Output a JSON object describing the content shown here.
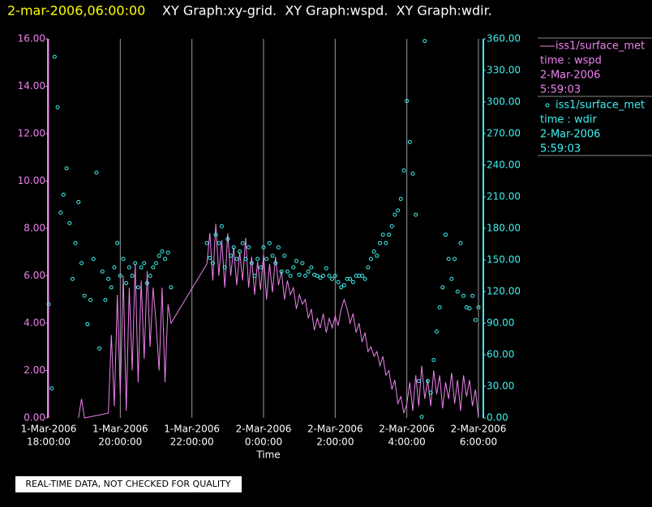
{
  "header": {
    "timestamp": "2-mar-2006,06:00:00",
    "graphs": "XY Graph:xy-grid.  XY Graph:wspd.  XY Graph:wdir."
  },
  "footer": "REAL-TIME DATA, NOT CHECKED FOR QUALITY",
  "chart_data": {
    "type": "xy",
    "xlabel": "Time",
    "grid": true,
    "xlim": [
      "2006-03-01T18:00",
      "2006-03-02T06:00"
    ],
    "xticks": [
      {
        "value": "2006-03-01T18:00",
        "label": [
          "1-Mar-2006",
          "18:00:00"
        ]
      },
      {
        "value": "2006-03-01T20:00",
        "label": [
          "1-Mar-2006",
          "20:00:00"
        ]
      },
      {
        "value": "2006-03-01T22:00",
        "label": [
          "1-Mar-2006",
          "22:00:00"
        ]
      },
      {
        "value": "2006-03-02T00:00",
        "label": [
          "2-Mar-2006",
          "0:00:00"
        ]
      },
      {
        "value": "2006-03-02T02:00",
        "label": [
          "2-Mar-2006",
          "2:00:00"
        ]
      },
      {
        "value": "2006-03-02T04:00",
        "label": [
          "2-Mar-2006",
          "4:00:00"
        ]
      },
      {
        "value": "2006-03-02T06:00",
        "label": [
          "2-Mar-2006",
          "6:00:00"
        ]
      }
    ],
    "ylim": [
      0,
      16
    ],
    "yticks": [
      {
        "value": 0,
        "label": "0.00"
      },
      {
        "value": 2,
        "label": "2.00"
      },
      {
        "value": 4,
        "label": "4.00"
      },
      {
        "value": 6,
        "label": "6.00"
      },
      {
        "value": 8,
        "label": "8.00"
      },
      {
        "value": 10,
        "label": "10.00"
      },
      {
        "value": 12,
        "label": "12.00"
      },
      {
        "value": 14,
        "label": "14.00"
      },
      {
        "value": 16,
        "label": "16.00"
      }
    ],
    "y2lim": [
      0,
      360
    ],
    "y2ticks": [
      {
        "value": 0,
        "label": "0.00"
      },
      {
        "value": 30,
        "label": "30.00"
      },
      {
        "value": 60,
        "label": "60.00"
      },
      {
        "value": 90,
        "label": "90.00"
      },
      {
        "value": 120,
        "label": "120.00"
      },
      {
        "value": 150,
        "label": "150.00"
      },
      {
        "value": 180,
        "label": "180.00"
      },
      {
        "value": 210,
        "label": "210.00"
      },
      {
        "value": 240,
        "label": "240.00"
      },
      {
        "value": 270,
        "label": "270.00"
      },
      {
        "value": 300,
        "label": "300.00"
      },
      {
        "value": 330,
        "label": "330.00"
      },
      {
        "value": 360,
        "label": "360.00"
      }
    ],
    "series": [
      {
        "name": "iss1/surface_met",
        "legend_lines": [
          "time : wspd",
          "2-Mar-2006",
          "5:59:03"
        ],
        "type": "line",
        "color": "#ee82ee",
        "x": [
          "2006-03-01T18:50",
          "2006-03-01T18:55",
          "2006-03-01T19:00",
          "2006-03-01T19:40",
          "2006-03-01T19:45",
          "2006-03-01T19:50",
          "2006-03-01T19:55",
          "2006-03-01T20:00",
          "2006-03-01T20:05",
          "2006-03-01T20:10",
          "2006-03-01T20:15",
          "2006-03-01T20:20",
          "2006-03-01T20:25",
          "2006-03-01T20:30",
          "2006-03-01T20:35",
          "2006-03-01T20:40",
          "2006-03-01T20:45",
          "2006-03-01T20:50",
          "2006-03-01T20:55",
          "2006-03-01T21:00",
          "2006-03-01T21:05",
          "2006-03-01T21:10",
          "2006-03-01T21:15",
          "2006-03-01T21:20",
          "2006-03-01T21:25",
          "2006-03-01T22:25",
          "2006-03-01T22:30",
          "2006-03-01T22:35",
          "2006-03-01T22:40",
          "2006-03-01T22:45",
          "2006-03-01T22:50",
          "2006-03-01T22:55",
          "2006-03-01T23:00",
          "2006-03-01T23:05",
          "2006-03-01T23:10",
          "2006-03-01T23:15",
          "2006-03-01T23:20",
          "2006-03-01T23:25",
          "2006-03-01T23:30",
          "2006-03-01T23:35",
          "2006-03-01T23:40",
          "2006-03-01T23:45",
          "2006-03-01T23:50",
          "2006-03-01T23:55",
          "2006-03-02T00:00",
          "2006-03-02T00:05",
          "2006-03-02T00:10",
          "2006-03-02T00:15",
          "2006-03-02T00:20",
          "2006-03-02T00:25",
          "2006-03-02T00:30",
          "2006-03-02T00:35",
          "2006-03-02T00:40",
          "2006-03-02T00:45",
          "2006-03-02T00:50",
          "2006-03-02T00:55",
          "2006-03-02T01:00",
          "2006-03-02T01:05",
          "2006-03-02T01:10",
          "2006-03-02T01:15",
          "2006-03-02T01:20",
          "2006-03-02T01:25",
          "2006-03-02T01:30",
          "2006-03-02T01:35",
          "2006-03-02T01:40",
          "2006-03-02T01:45",
          "2006-03-02T01:50",
          "2006-03-02T01:55",
          "2006-03-02T02:00",
          "2006-03-02T02:05",
          "2006-03-02T02:10",
          "2006-03-02T02:15",
          "2006-03-02T02:20",
          "2006-03-02T02:25",
          "2006-03-02T02:30",
          "2006-03-02T02:35",
          "2006-03-02T02:40",
          "2006-03-02T02:45",
          "2006-03-02T02:50",
          "2006-03-02T02:55",
          "2006-03-02T03:00",
          "2006-03-02T03:05",
          "2006-03-02T03:10",
          "2006-03-02T03:15",
          "2006-03-02T03:20",
          "2006-03-02T03:25",
          "2006-03-02T03:30",
          "2006-03-02T03:35",
          "2006-03-02T03:40",
          "2006-03-02T03:45",
          "2006-03-02T03:50",
          "2006-03-02T03:55",
          "2006-03-02T04:00",
          "2006-03-02T04:05",
          "2006-03-02T04:10",
          "2006-03-02T04:15",
          "2006-03-02T04:20",
          "2006-03-02T04:25",
          "2006-03-02T04:30",
          "2006-03-02T04:35",
          "2006-03-02T04:40",
          "2006-03-02T04:45",
          "2006-03-02T04:50",
          "2006-03-02T04:55",
          "2006-03-02T05:00",
          "2006-03-02T05:05",
          "2006-03-02T05:10",
          "2006-03-02T05:15",
          "2006-03-02T05:20",
          "2006-03-02T05:25",
          "2006-03-02T05:30",
          "2006-03-02T05:35",
          "2006-03-02T05:40",
          "2006-03-02T05:45",
          "2006-03-02T05:50",
          "2006-03-02T05:55",
          "2006-03-02T06:00"
        ],
        "values": [
          0,
          0.8,
          0,
          0.2,
          3.5,
          0.5,
          5.2,
          1.0,
          6.0,
          0.3,
          5.5,
          2.0,
          6.5,
          1.5,
          5.8,
          2.5,
          6.2,
          3.0,
          5.5,
          4.0,
          2.0,
          5.5,
          1.5,
          4.8,
          4.0,
          6.5,
          7.8,
          5.8,
          8.2,
          6.0,
          7.5,
          5.5,
          7.8,
          6.0,
          7.2,
          5.6,
          7.0,
          5.8,
          7.6,
          5.5,
          6.8,
          5.2,
          6.6,
          5.4,
          6.9,
          5.0,
          6.5,
          5.3,
          6.8,
          5.6,
          6.2,
          5.0,
          5.8,
          5.2,
          5.5,
          4.6,
          5.2,
          4.8,
          5.0,
          4.2,
          4.6,
          3.7,
          4.2,
          3.8,
          4.4,
          3.6,
          4.2,
          3.8,
          4.3,
          3.9,
          4.6,
          5.0,
          4.6,
          4.0,
          4.4,
          3.6,
          4.0,
          3.2,
          3.6,
          2.8,
          3.0,
          2.6,
          2.8,
          2.2,
          2.6,
          1.8,
          2.0,
          1.2,
          1.6,
          0.6,
          0.9,
          0.2,
          0.6,
          1.5,
          0.3,
          1.8,
          0.5,
          2.2,
          0.8,
          1.6,
          0.5,
          2.0,
          1.0,
          1.8,
          0.4,
          1.5,
          0.8,
          1.9,
          0.6,
          1.6,
          0.3,
          1.8,
          0.9,
          1.6,
          0.5,
          1.2,
          0.0
        ]
      },
      {
        "name": "iss1/surface_met",
        "legend_lines": [
          "time : wdir",
          "2-Mar-2006",
          "5:59:03"
        ],
        "type": "scatter",
        "axis": "y2",
        "color": "#40f0f0",
        "x": [
          "2006-03-01T18:00",
          "2006-03-01T18:05",
          "2006-03-01T18:10",
          "2006-03-01T18:15",
          "2006-03-01T18:20",
          "2006-03-01T18:25",
          "2006-03-01T18:30",
          "2006-03-01T18:35",
          "2006-03-01T18:40",
          "2006-03-01T18:45",
          "2006-03-01T18:50",
          "2006-03-01T18:55",
          "2006-03-01T19:00",
          "2006-03-01T19:05",
          "2006-03-01T19:10",
          "2006-03-01T19:15",
          "2006-03-01T19:20",
          "2006-03-01T19:25",
          "2006-03-01T19:30",
          "2006-03-01T19:35",
          "2006-03-01T19:40",
          "2006-03-01T19:45",
          "2006-03-01T19:50",
          "2006-03-01T19:55",
          "2006-03-01T20:00",
          "2006-03-01T20:05",
          "2006-03-01T20:10",
          "2006-03-01T20:15",
          "2006-03-01T20:20",
          "2006-03-01T20:25",
          "2006-03-01T20:30",
          "2006-03-01T20:35",
          "2006-03-01T20:40",
          "2006-03-01T20:45",
          "2006-03-01T20:50",
          "2006-03-01T20:55",
          "2006-03-01T21:00",
          "2006-03-01T21:05",
          "2006-03-01T21:10",
          "2006-03-01T21:15",
          "2006-03-01T21:20",
          "2006-03-01T21:25",
          "2006-03-01T21:30",
          "2006-03-01T21:35",
          "2006-03-01T21:40",
          "2006-03-01T21:45",
          "2006-03-01T21:50",
          "2006-03-01T21:55",
          "2006-03-01T22:00",
          "2006-03-01T22:05",
          "2006-03-01T22:10",
          "2006-03-01T22:15",
          "2006-03-01T22:20",
          "2006-03-01T22:25",
          "2006-03-01T22:30",
          "2006-03-01T22:35",
          "2006-03-01T22:40",
          "2006-03-01T22:45",
          "2006-03-01T22:50",
          "2006-03-01T22:55",
          "2006-03-01T23:00",
          "2006-03-01T23:05",
          "2006-03-01T23:10",
          "2006-03-01T23:15",
          "2006-03-01T23:20",
          "2006-03-01T23:25",
          "2006-03-01T23:30",
          "2006-03-01T23:35",
          "2006-03-01T23:40",
          "2006-03-01T23:45",
          "2006-03-01T23:50",
          "2006-03-01T23:55",
          "2006-03-02T00:00",
          "2006-03-02T00:05",
          "2006-03-02T00:10",
          "2006-03-02T00:15",
          "2006-03-02T00:20",
          "2006-03-02T00:25",
          "2006-03-02T00:30",
          "2006-03-02T00:35",
          "2006-03-02T00:40",
          "2006-03-02T00:45",
          "2006-03-02T00:50",
          "2006-03-02T00:55",
          "2006-03-02T01:00",
          "2006-03-02T01:05",
          "2006-03-02T01:10",
          "2006-03-02T01:15",
          "2006-03-02T01:20",
          "2006-03-02T01:25",
          "2006-03-02T01:30",
          "2006-03-02T01:35",
          "2006-03-02T01:40",
          "2006-03-02T01:45",
          "2006-03-02T01:50",
          "2006-03-02T01:55",
          "2006-03-02T02:00",
          "2006-03-02T02:05",
          "2006-03-02T02:10",
          "2006-03-02T02:15",
          "2006-03-02T02:20",
          "2006-03-02T02:25",
          "2006-03-02T02:30",
          "2006-03-02T02:35",
          "2006-03-02T02:40",
          "2006-03-02T02:45",
          "2006-03-02T02:50",
          "2006-03-02T02:55",
          "2006-03-02T03:00",
          "2006-03-02T03:05",
          "2006-03-02T03:10",
          "2006-03-02T03:15",
          "2006-03-02T03:20",
          "2006-03-02T03:25",
          "2006-03-02T03:30",
          "2006-03-02T03:35",
          "2006-03-02T03:40",
          "2006-03-02T03:45",
          "2006-03-02T03:50",
          "2006-03-02T03:55",
          "2006-03-02T04:00",
          "2006-03-02T04:05",
          "2006-03-02T04:10",
          "2006-03-02T04:15",
          "2006-03-02T04:20",
          "2006-03-02T04:25",
          "2006-03-02T04:30",
          "2006-03-02T04:35",
          "2006-03-02T04:40",
          "2006-03-02T04:45",
          "2006-03-02T04:50",
          "2006-03-02T04:55",
          "2006-03-02T05:00",
          "2006-03-02T05:05",
          "2006-03-02T05:10",
          "2006-03-02T05:15",
          "2006-03-02T05:20",
          "2006-03-02T05:25",
          "2006-03-02T05:30",
          "2006-03-02T05:35",
          "2006-03-02T05:40",
          "2006-03-02T05:45",
          "2006-03-02T05:50",
          "2006-03-02T05:55",
          "2006-03-02T06:00"
        ],
        "values": [
          108,
          28,
          343,
          295,
          195,
          212,
          237,
          185,
          132,
          166,
          205,
          147,
          116,
          89,
          112,
          151,
          233,
          66,
          139,
          112,
          132,
          124,
          143,
          166,
          135,
          151,
          128,
          143,
          135,
          147,
          124,
          143,
          147,
          128,
          135,
          143,
          147,
          154,
          158,
          151,
          157,
          124,
          null,
          null,
          null,
          null,
          null,
          null,
          null,
          null,
          null,
          null,
          null,
          166,
          152,
          147,
          174,
          166,
          182,
          143,
          170,
          154,
          162,
          151,
          158,
          166,
          151,
          162,
          147,
          135,
          151,
          143,
          162,
          151,
          166,
          154,
          147,
          162,
          139,
          154,
          139,
          135,
          143,
          149,
          136,
          147,
          135,
          139,
          143,
          136,
          135,
          133,
          135,
          142,
          135,
          132,
          135,
          129,
          124,
          126,
          132,
          132,
          129,
          135,
          135,
          135,
          132,
          143,
          151,
          158,
          154,
          166,
          174,
          166,
          174,
          182,
          193,
          197,
          208,
          235,
          301,
          262,
          232,
          193,
          35,
          1,
          358,
          35,
          24,
          55,
          82,
          105,
          124,
          174,
          151,
          132,
          151,
          120,
          166,
          116,
          105,
          104,
          116,
          93,
          105
        ]
      }
    ]
  }
}
